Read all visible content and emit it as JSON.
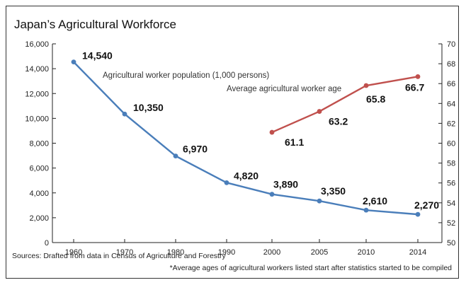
{
  "chart_data": {
    "type": "line",
    "title": "Japan’s Agricultural Workforce",
    "categories": [
      "1960",
      "1970",
      "1980",
      "1990",
      "2000",
      "2005",
      "2010",
      "2014"
    ],
    "left_axis": {
      "ylim": [
        0,
        16000
      ],
      "ticks": [
        "0",
        "2,000",
        "4,000",
        "6,000",
        "8,000",
        "10,000",
        "12,000",
        "14,000",
        "16,000"
      ]
    },
    "right_axis": {
      "ylim": [
        50,
        70
      ],
      "ticks": [
        "50",
        "52",
        "54",
        "56",
        "58",
        "60",
        "62",
        "64",
        "66",
        "68",
        "70"
      ]
    },
    "series": [
      {
        "name": "Agricultural worker population (1,000 persons)",
        "axis": "left",
        "color": "#4a7eba",
        "values": [
          14540,
          10350,
          6970,
          4820,
          3890,
          3350,
          2610,
          2270
        ],
        "labels": [
          "14,540",
          "10,350",
          "6,970",
          "4,820",
          "3,890",
          "3,350",
          "2,610",
          "2,270"
        ]
      },
      {
        "name": "Average agricultural worker age",
        "axis": "right",
        "color": "#c0504d",
        "values": [
          null,
          null,
          null,
          null,
          61.1,
          63.2,
          65.8,
          66.7
        ],
        "labels": [
          "",
          "",
          "",
          "",
          "61.1",
          "63.2",
          "65.8",
          "66.7"
        ]
      }
    ],
    "grid": false
  },
  "footnotes": {
    "source": "Sources: Drafted from data in Census of Agriculture and Forestry",
    "note": "*Average ages of agricultural workers listed start after statistics started to be compiled"
  }
}
